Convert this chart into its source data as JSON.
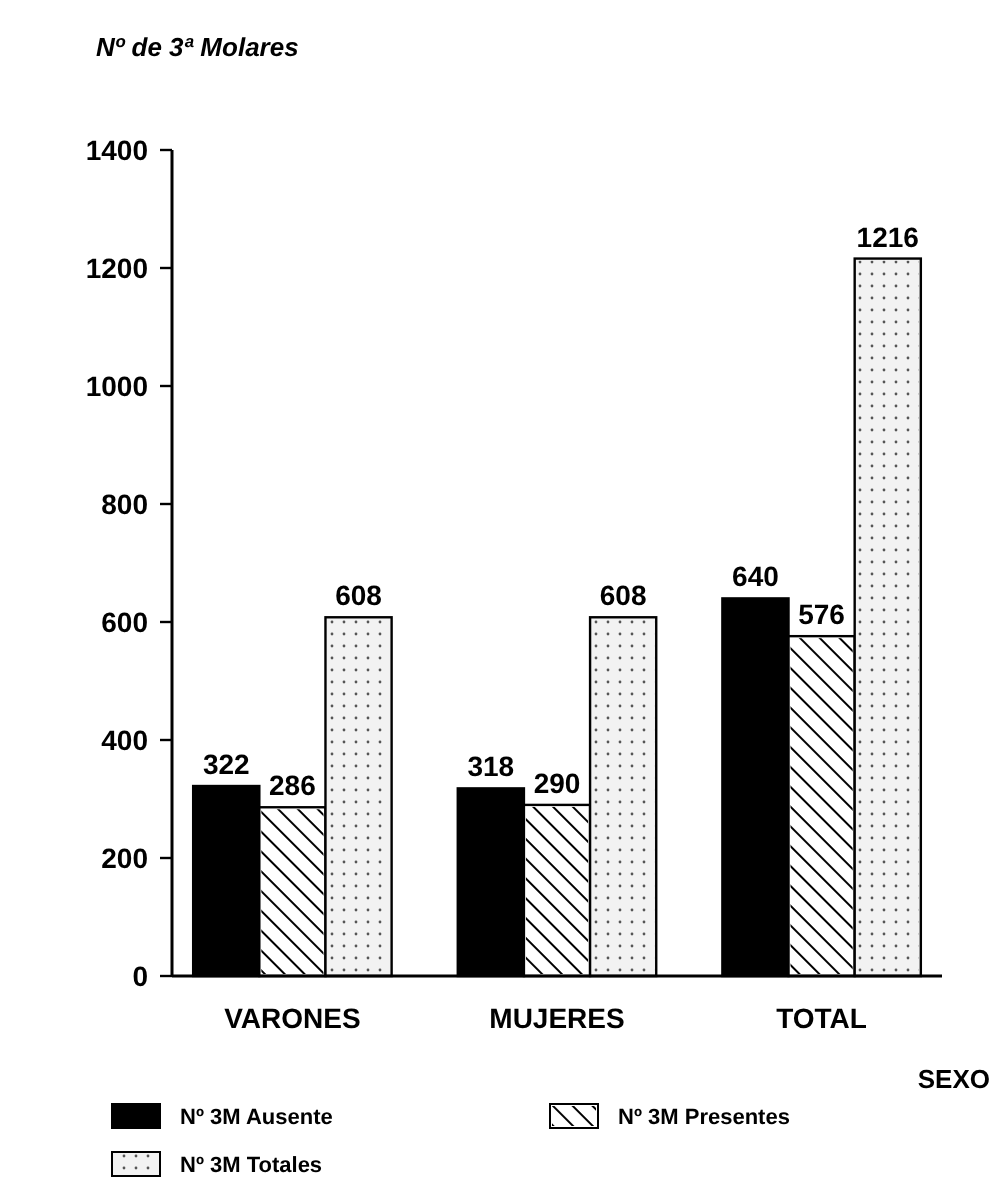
{
  "chart_data": {
    "type": "bar",
    "ylabel": "Nº de 3ª Molares",
    "xlabel": "SEXO",
    "categories": [
      "VARONES",
      "MUJERES",
      "TOTAL"
    ],
    "series": [
      {
        "name": "Nº 3M Ausente",
        "color": "#000000",
        "values": [
          322,
          318,
          640
        ]
      },
      {
        "name": "Nº 3M Presentes",
        "color": "#ffffff",
        "values": [
          286,
          290,
          576
        ]
      },
      {
        "name": "Nº 3M Totales",
        "color": "#f2f2f2",
        "values": [
          608,
          608,
          1216
        ]
      }
    ],
    "ylim": [
      0,
      1400
    ],
    "yticks": [
      0,
      200,
      400,
      600,
      800,
      1000,
      1200,
      1400
    ],
    "grid": false,
    "legend": "bottom",
    "data_labels": true
  }
}
